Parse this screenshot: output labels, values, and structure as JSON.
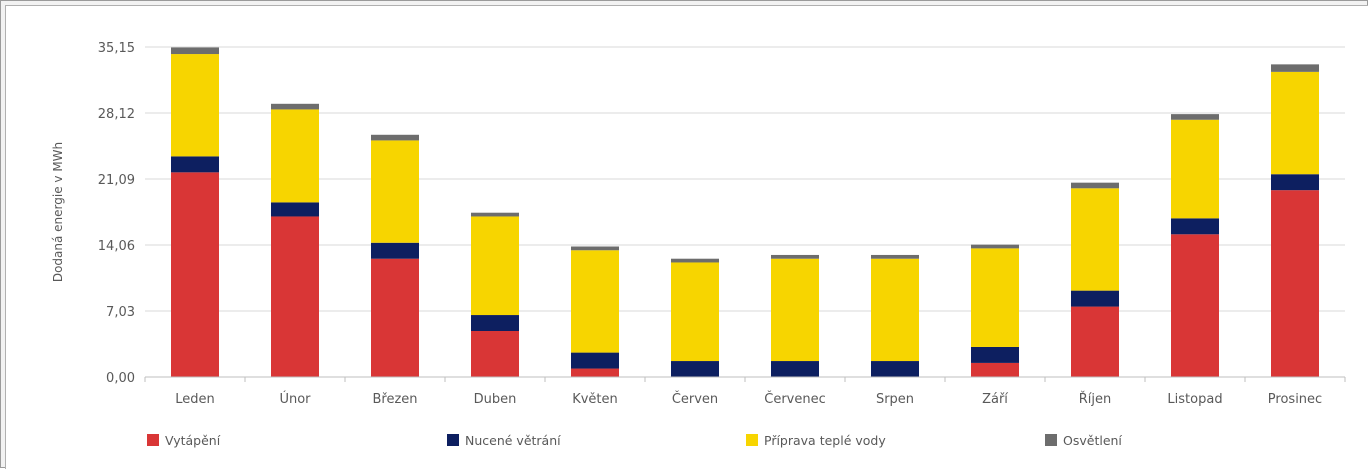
{
  "chart_data": {
    "type": "bar",
    "stacked": true,
    "ylabel": "Dodaná energie v MWh",
    "xlabel": "",
    "ylim": [
      0,
      35.15
    ],
    "yticks": [
      "0,00",
      "7,03",
      "14,06",
      "21,09",
      "28,12",
      "35,15"
    ],
    "ytick_values": [
      0,
      7.03,
      14.06,
      21.09,
      28.12,
      35.15
    ],
    "grid": true,
    "legend_position": "bottom",
    "categories": [
      "Leden",
      "Únor",
      "Březen",
      "Duben",
      "Květen",
      "Červen",
      "Červenec",
      "Srpen",
      "Září",
      "Říjen",
      "Listopad",
      "Prosinec"
    ],
    "series": [
      {
        "name": "Vytápění",
        "color": "#d93636",
        "values": [
          21.8,
          17.1,
          12.6,
          4.9,
          0.9,
          0.0,
          0.0,
          0.0,
          1.5,
          7.5,
          15.2,
          19.9
        ]
      },
      {
        "name": "Nucené větrání",
        "color": "#0d1f60",
        "values": [
          1.7,
          1.5,
          1.7,
          1.7,
          1.7,
          1.7,
          1.7,
          1.7,
          1.7,
          1.7,
          1.7,
          1.7
        ]
      },
      {
        "name": "Příprava teplé vody",
        "color": "#f7d500",
        "values": [
          10.9,
          9.9,
          10.9,
          10.5,
          10.9,
          10.5,
          10.9,
          10.9,
          10.5,
          10.9,
          10.5,
          10.9
        ]
      },
      {
        "name": "Osvětlení",
        "color": "#6d6d6d",
        "values": [
          0.7,
          0.6,
          0.6,
          0.4,
          0.4,
          0.4,
          0.4,
          0.4,
          0.4,
          0.6,
          0.6,
          0.8
        ]
      }
    ]
  }
}
